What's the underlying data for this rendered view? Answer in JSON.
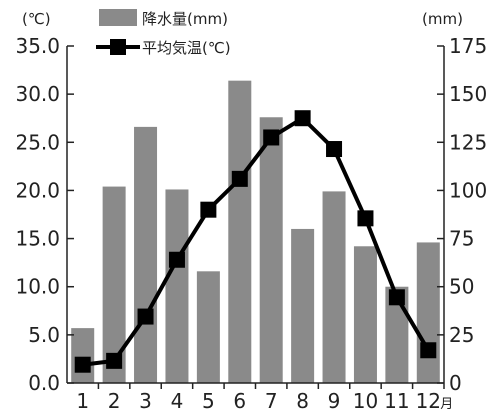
{
  "chart_data": {
    "type": "bar",
    "categories": [
      "1",
      "2",
      "3",
      "4",
      "5",
      "6",
      "7",
      "8",
      "9",
      "10",
      "11",
      "12"
    ],
    "month_suffix": "月",
    "left_unit": "(℃)",
    "right_unit": "(mm)",
    "left_ticks": [
      "0.0",
      "5.0",
      "10.0",
      "15.0",
      "20.0",
      "25.0",
      "30.0",
      "35.0"
    ],
    "right_ticks": [
      "0",
      "25",
      "50",
      "75",
      "100",
      "125",
      "150",
      "175"
    ],
    "ylim_left": [
      0,
      35
    ],
    "ylim_right": [
      0,
      175
    ],
    "series": [
      {
        "name": "降水量(mm)",
        "type": "bar",
        "axis": "right",
        "color": "#8a8a8a",
        "values": [
          28.5,
          102,
          133,
          100.5,
          58,
          157,
          138,
          80,
          99.5,
          71,
          50,
          73
        ]
      },
      {
        "name": "平均気温(℃)",
        "type": "line",
        "axis": "left",
        "color": "#000000",
        "values": [
          1.9,
          2.3,
          6.9,
          12.8,
          18.0,
          21.2,
          25.5,
          27.5,
          24.3,
          17.1,
          8.9,
          3.4
        ]
      }
    ],
    "grid": false,
    "legend": "top-left"
  }
}
